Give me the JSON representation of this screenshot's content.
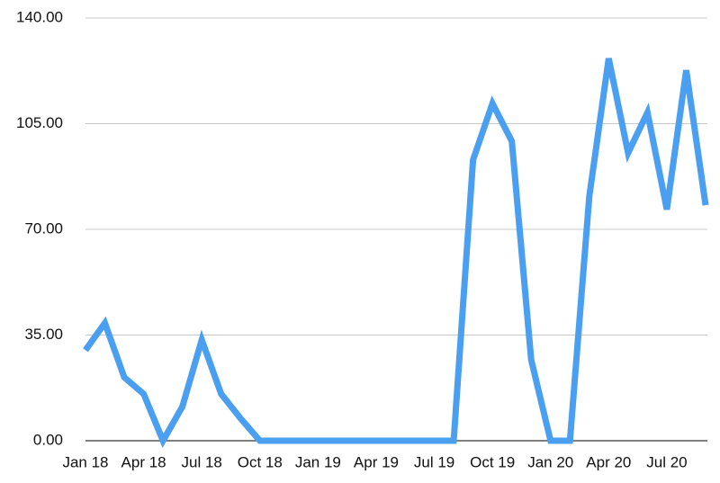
{
  "chart_data": {
    "type": "line",
    "categories": [
      "Jan 18",
      null,
      null,
      "Apr 18",
      null,
      null,
      "Jul 18",
      null,
      null,
      "Oct 18",
      null,
      null,
      "Jan 19",
      null,
      null,
      "Apr 19",
      null,
      null,
      "Jul 19",
      null,
      null,
      "Oct 19",
      null,
      null,
      "Jan 20",
      null,
      null,
      "Apr 20",
      null,
      null,
      "Jul 20",
      null,
      null
    ],
    "series": [
      {
        "color": "#4a9ff0",
        "values": [
          30,
          39,
          21,
          15.5,
          0,
          11.3,
          33.4,
          15.5,
          7.4,
          0,
          0,
          0,
          0,
          0,
          0,
          0,
          0,
          0,
          0,
          0,
          93,
          111.7,
          99.2,
          26.8,
          0,
          0,
          81,
          126.6,
          95.3,
          108.7,
          76.6,
          122.7,
          78
        ]
      }
    ],
    "ylim": [
      0,
      140
    ],
    "yticks": [
      {
        "value": 0,
        "label": "0.00"
      },
      {
        "value": 35,
        "label": "35.00"
      },
      {
        "value": 70,
        "label": "70.00"
      },
      {
        "value": 105,
        "label": "105.00"
      },
      {
        "value": 140,
        "label": "140.00"
      }
    ],
    "grid": true
  }
}
